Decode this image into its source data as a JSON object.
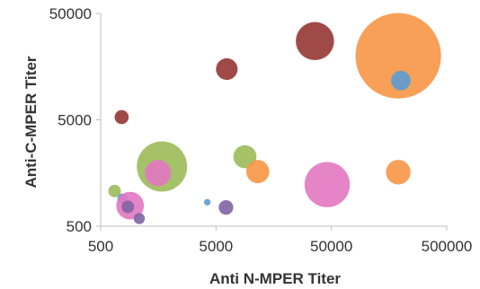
{
  "chart_data": {
    "type": "scatter",
    "subtype": "bubble",
    "xlabel": "Anti N-MPER Titer",
    "ylabel": "Anti-C-MPER Titer",
    "x_scale": "log",
    "y_scale": "log",
    "xlim": [
      500,
      500000
    ],
    "ylim": [
      500,
      50000
    ],
    "x_ticks": [
      "500",
      "5000",
      "50000",
      "500000"
    ],
    "y_ticks": [
      "500",
      "5000",
      "50000"
    ],
    "grid": false,
    "legend": "none",
    "points": [
      {
        "x": 760,
        "y": 5300,
        "size": 0.28,
        "color": "#963634"
      },
      {
        "x": 6200,
        "y": 15000,
        "size": 0.43,
        "color": "#963634"
      },
      {
        "x": 36000,
        "y": 27500,
        "size": 0.76,
        "color": "#963634"
      },
      {
        "x": 1700,
        "y": 1820,
        "size": 1.0,
        "color": "#9bbb59"
      },
      {
        "x": 8900,
        "y": 2250,
        "size": 0.46,
        "color": "#9bbb59"
      },
      {
        "x": 660,
        "y": 1070,
        "size": 0.25,
        "color": "#9bbb59"
      },
      {
        "x": 190000,
        "y": 20000,
        "size": 1.7,
        "color": "#f79646"
      },
      {
        "x": 11500,
        "y": 1630,
        "size": 0.46,
        "color": "#f79646"
      },
      {
        "x": 190000,
        "y": 1610,
        "size": 0.49,
        "color": "#f79646"
      },
      {
        "x": 200000,
        "y": 11700,
        "size": 0.39,
        "color": "#5b9bd5"
      },
      {
        "x": 4200,
        "y": 840,
        "size": 0.13,
        "color": "#5b9bd5"
      },
      {
        "x": 770,
        "y": 910,
        "size": 0.2,
        "color": "#5b9bd5"
      },
      {
        "x": 46000,
        "y": 1230,
        "size": 0.9,
        "color": "#e377c2"
      },
      {
        "x": 1570,
        "y": 1580,
        "size": 0.52,
        "color": "#e377c2"
      },
      {
        "x": 900,
        "y": 780,
        "size": 0.55,
        "color": "#e377c2"
      },
      {
        "x": 6100,
        "y": 750,
        "size": 0.29,
        "color": "#8064a2"
      },
      {
        "x": 1080,
        "y": 590,
        "size": 0.22,
        "color": "#8064a2"
      },
      {
        "x": 860,
        "y": 760,
        "size": 0.25,
        "color": "#8064a2"
      }
    ]
  }
}
